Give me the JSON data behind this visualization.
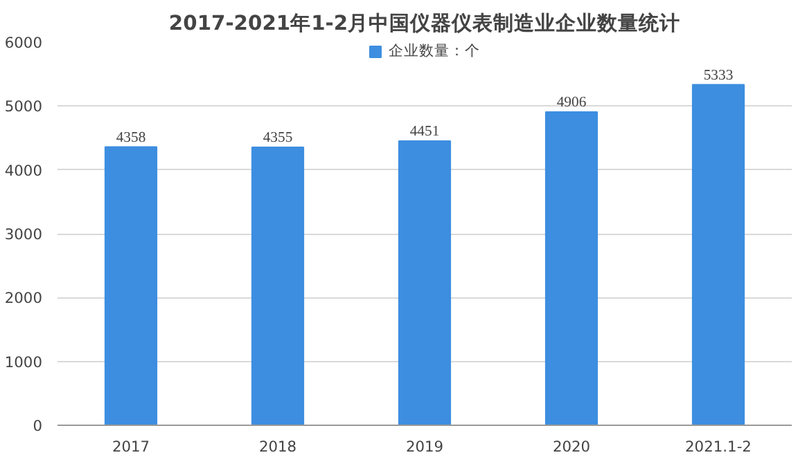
{
  "chart_data": {
    "type": "bar",
    "title": "2017-2021年1-2月中国仪器仪表制造业企业数量统计",
    "categories": [
      "2017",
      "2018",
      "2019",
      "2020",
      "2021.1-2"
    ],
    "series": [
      {
        "name": "企业数量：个",
        "color": "#3d8ee0",
        "values": [
          4358,
          4355,
          4451,
          4906,
          5333
        ]
      }
    ],
    "ylim": [
      0,
      6000
    ],
    "yticks": [
      0,
      1000,
      2000,
      3000,
      4000,
      5000,
      6000
    ],
    "grid": "y",
    "legend": "top",
    "data_labels": true
  }
}
